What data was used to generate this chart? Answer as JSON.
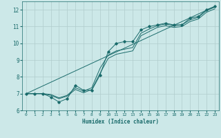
{
  "xlabel": "Humidex (Indice chaleur)",
  "background_color": "#cce8e8",
  "grid_color": "#b0cccc",
  "line_color": "#1a6b6b",
  "xlim": [
    -0.5,
    23.5
  ],
  "ylim": [
    6,
    12.5
  ],
  "xticks": [
    0,
    1,
    2,
    3,
    4,
    5,
    6,
    7,
    8,
    9,
    10,
    11,
    12,
    13,
    14,
    15,
    16,
    17,
    18,
    19,
    20,
    21,
    22,
    23
  ],
  "yticks": [
    6,
    7,
    8,
    9,
    10,
    11,
    12
  ],
  "series": [
    {
      "x": [
        0,
        1,
        2,
        3,
        4,
        5,
        6,
        7,
        8,
        9,
        10,
        11,
        12,
        13,
        14,
        15,
        16,
        17,
        18,
        19,
        20,
        21,
        22,
        23
      ],
      "y": [
        7.0,
        7.0,
        7.0,
        6.8,
        6.5,
        6.7,
        7.5,
        7.2,
        7.2,
        8.1,
        9.5,
        10.0,
        10.1,
        10.1,
        10.8,
        11.0,
        11.1,
        11.2,
        11.1,
        11.1,
        11.5,
        11.6,
        12.0,
        12.2
      ],
      "marker": true
    },
    {
      "x": [
        0,
        1,
        2,
        3,
        4,
        5,
        6,
        7,
        8,
        9,
        10,
        11,
        12,
        13,
        14,
        15,
        16,
        17,
        18,
        19,
        20,
        21,
        22,
        23
      ],
      "y": [
        7.0,
        7.0,
        7.0,
        6.95,
        6.75,
        6.9,
        7.35,
        7.15,
        7.35,
        8.5,
        9.3,
        9.55,
        9.65,
        9.75,
        10.6,
        10.85,
        11.05,
        11.15,
        11.05,
        11.1,
        11.4,
        11.55,
        11.95,
        12.15
      ],
      "marker": false
    },
    {
      "x": [
        0,
        1,
        2,
        3,
        4,
        5,
        6,
        7,
        8,
        9,
        10,
        11,
        12,
        13,
        14,
        15,
        16,
        17,
        18,
        19,
        20,
        21,
        22,
        23
      ],
      "y": [
        7.0,
        7.0,
        7.0,
        6.9,
        6.7,
        6.85,
        7.25,
        7.05,
        7.25,
        8.2,
        9.1,
        9.35,
        9.45,
        9.55,
        10.45,
        10.7,
        10.95,
        11.05,
        10.95,
        11.0,
        11.3,
        11.45,
        11.85,
        12.05
      ],
      "marker": false
    },
    {
      "x": [
        0,
        23
      ],
      "y": [
        7.0,
        12.2
      ],
      "marker": false
    }
  ]
}
